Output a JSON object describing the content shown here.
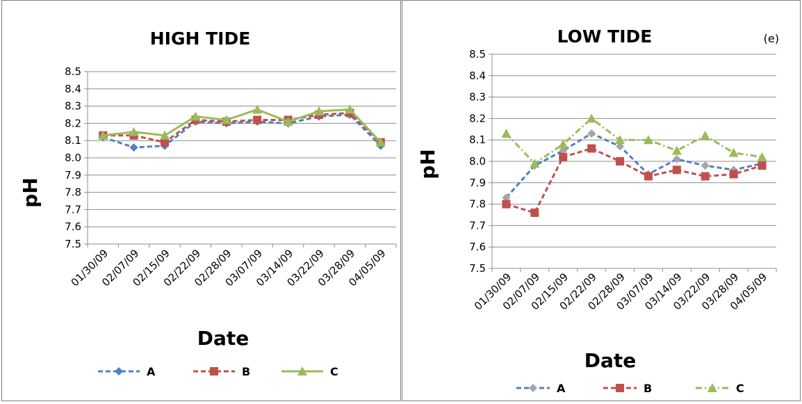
{
  "chart_data": [
    {
      "type": "line",
      "title": "HIGH  TIDE",
      "xlabel": "Date",
      "ylabel": "pH",
      "ylim": [
        7.5,
        8.5
      ],
      "ytick_step": 0.1,
      "grid": true,
      "legend_position": "bottom",
      "categories": [
        "01/30/09",
        "02/07/09",
        "02/15/09",
        "02/22/09",
        "02/28/09",
        "03/07/09",
        "03/14/09",
        "03/22/09",
        "03/28/09",
        "04/05/09"
      ],
      "series": [
        {
          "name": "A",
          "color": "#4f81bd",
          "dash": "dashed",
          "marker": "diamond",
          "values": [
            8.12,
            8.06,
            8.07,
            8.21,
            8.2,
            8.21,
            8.2,
            8.24,
            8.25,
            8.07
          ]
        },
        {
          "name": "B",
          "color": "#c0504d",
          "dash": "dashed",
          "marker": "square",
          "values": [
            8.13,
            8.13,
            8.09,
            8.22,
            8.21,
            8.22,
            8.22,
            8.25,
            8.26,
            8.09
          ]
        },
        {
          "name": "C",
          "color": "#9bbb59",
          "dash": "solid",
          "marker": "triangle",
          "values": [
            8.13,
            8.15,
            8.13,
            8.24,
            8.22,
            8.28,
            8.21,
            8.27,
            8.28,
            8.09
          ]
        }
      ]
    },
    {
      "type": "line",
      "title": "LOW TIDE",
      "annotation": "(e)",
      "xlabel": "Date",
      "ylabel": "pH",
      "ylim": [
        7.5,
        8.5
      ],
      "ytick_step": 0.1,
      "grid": true,
      "legend_position": "bottom",
      "categories": [
        "01/30/09",
        "02/07/09",
        "02/15/09",
        "02/22/09",
        "02/28/09",
        "03/07/09",
        "03/14/09",
        "03/22/09",
        "03/28/09",
        "04/05/09"
      ],
      "series": [
        {
          "name": "A",
          "color": "#4f81bd",
          "marker_color": "#a5a5a5",
          "dash": "dashed",
          "marker": "diamond",
          "values": [
            7.83,
            7.98,
            8.05,
            8.13,
            8.07,
            7.94,
            8.01,
            7.98,
            7.96,
            7.99
          ]
        },
        {
          "name": "B",
          "color": "#c0504d",
          "dash": "dashed",
          "marker": "square",
          "values": [
            7.8,
            7.76,
            8.02,
            8.06,
            8.0,
            7.93,
            7.96,
            7.93,
            7.94,
            7.98
          ]
        },
        {
          "name": "C",
          "color": "#9bbb59",
          "dash": "dotdash",
          "marker": "triangle",
          "values": [
            8.13,
            7.99,
            8.08,
            8.2,
            8.1,
            8.1,
            8.05,
            8.12,
            8.04,
            8.02
          ]
        }
      ]
    }
  ]
}
